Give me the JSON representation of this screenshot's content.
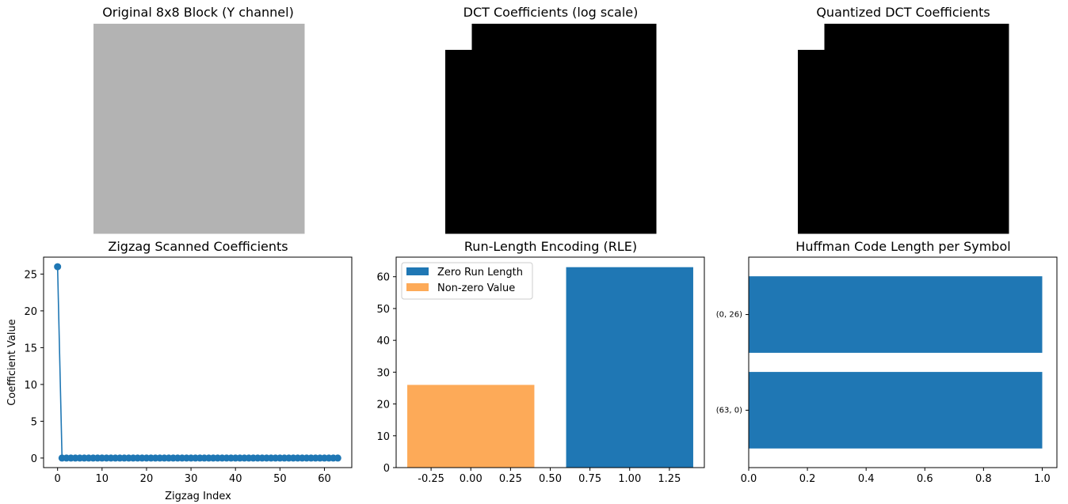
{
  "figure": {
    "panels": {
      "original": {
        "title": "Original 8x8 Block (Y channel)"
      },
      "dct": {
        "title": "DCT Coefficients (log scale)"
      },
      "quantized": {
        "title": "Quantized DCT Coefficients"
      },
      "zigzag": {
        "title": "Zigzag Scanned Coefficients",
        "xlabel": "Zigzag Index",
        "ylabel": "Coefficient Value"
      },
      "rle": {
        "title": "Run-Length Encoding (RLE)"
      },
      "huffman": {
        "title": "Huffman Code Length per Symbol"
      }
    }
  },
  "colors": {
    "blue": "#1f77b4",
    "orange": "#fdaa58",
    "gray": "#b3b3b3",
    "black": "#000000"
  },
  "chart_data": [
    {
      "type": "heatmap",
      "title": "Original 8x8 Block (Y channel)",
      "colormap": "gray",
      "grid": false,
      "note_values": "uniform block",
      "values": [
        [
          0.7,
          0.7,
          0.7,
          0.7,
          0.7,
          0.7,
          0.7,
          0.7
        ],
        [
          0.7,
          0.7,
          0.7,
          0.7,
          0.7,
          0.7,
          0.7,
          0.7
        ],
        [
          0.7,
          0.7,
          0.7,
          0.7,
          0.7,
          0.7,
          0.7,
          0.7
        ],
        [
          0.7,
          0.7,
          0.7,
          0.7,
          0.7,
          0.7,
          0.7,
          0.7
        ],
        [
          0.7,
          0.7,
          0.7,
          0.7,
          0.7,
          0.7,
          0.7,
          0.7
        ],
        [
          0.7,
          0.7,
          0.7,
          0.7,
          0.7,
          0.7,
          0.7,
          0.7
        ],
        [
          0.7,
          0.7,
          0.7,
          0.7,
          0.7,
          0.7,
          0.7,
          0.7
        ],
        [
          0.7,
          0.7,
          0.7,
          0.7,
          0.7,
          0.7,
          0.7,
          0.7
        ]
      ]
    },
    {
      "type": "heatmap",
      "title": "DCT Coefficients (log scale)",
      "colormap": "gray",
      "grid": false,
      "values": [
        [
          1,
          0,
          0,
          0,
          0,
          0,
          0,
          0
        ],
        [
          0,
          0,
          0,
          0,
          0,
          0,
          0,
          0
        ],
        [
          0,
          0,
          0,
          0,
          0,
          0,
          0,
          0
        ],
        [
          0,
          0,
          0,
          0,
          0,
          0,
          0,
          0
        ],
        [
          0,
          0,
          0,
          0,
          0,
          0,
          0,
          0
        ],
        [
          0,
          0,
          0,
          0,
          0,
          0,
          0,
          0
        ],
        [
          0,
          0,
          0,
          0,
          0,
          0,
          0,
          0
        ],
        [
          0,
          0,
          0,
          0,
          0,
          0,
          0,
          0
        ]
      ]
    },
    {
      "type": "heatmap",
      "title": "Quantized DCT Coefficients",
      "colormap": "gray",
      "grid": false,
      "values": [
        [
          1,
          0,
          0,
          0,
          0,
          0,
          0,
          0
        ],
        [
          0,
          0,
          0,
          0,
          0,
          0,
          0,
          0
        ],
        [
          0,
          0,
          0,
          0,
          0,
          0,
          0,
          0
        ],
        [
          0,
          0,
          0,
          0,
          0,
          0,
          0,
          0
        ],
        [
          0,
          0,
          0,
          0,
          0,
          0,
          0,
          0
        ],
        [
          0,
          0,
          0,
          0,
          0,
          0,
          0,
          0
        ],
        [
          0,
          0,
          0,
          0,
          0,
          0,
          0,
          0
        ],
        [
          0,
          0,
          0,
          0,
          0,
          0,
          0,
          0
        ]
      ]
    },
    {
      "type": "line",
      "title": "Zigzag Scanned Coefficients",
      "xlabel": "Zigzag Index",
      "ylabel": "Coefficient Value",
      "marker": "o",
      "x_start": 0,
      "x_end": 63,
      "y_first": 26,
      "y_rest": 0,
      "xlim": [
        -3.15,
        66.15
      ],
      "ylim": [
        -1.3,
        27.3
      ],
      "xticks": [
        0,
        10,
        20,
        30,
        40,
        50,
        60
      ],
      "yticks": [
        0,
        5,
        10,
        15,
        20,
        25
      ],
      "grid": false
    },
    {
      "type": "bar",
      "title": "Run-Length Encoding (RLE)",
      "series": [
        {
          "name": "Zero Run Length",
          "x": [
            1
          ],
          "values": [
            63
          ],
          "color": "#1f77b4"
        },
        {
          "name": "Non-zero Value",
          "x": [
            0
          ],
          "values": [
            26
          ],
          "color": "#fdaa58",
          "alpha": 0.7
        }
      ],
      "bar_width": 0.8,
      "xlim": [
        -0.47,
        1.47
      ],
      "ylim": [
        0,
        66.15
      ],
      "xticks": [
        "-0.25",
        "0.00",
        "0.25",
        "0.50",
        "0.75",
        "1.00",
        "1.25"
      ],
      "yticks": [
        0,
        10,
        20,
        30,
        40,
        50,
        60
      ],
      "legend": "upper-left",
      "grid": false
    },
    {
      "type": "bar",
      "orientation": "horizontal",
      "title": "Huffman Code Length per Symbol",
      "categories": [
        "(0, 26)",
        "(63, 0)"
      ],
      "values": [
        1,
        1
      ],
      "color": "#1f77b4",
      "xlim": [
        0,
        1.05
      ],
      "xticks": [
        "0.0",
        "0.2",
        "0.4",
        "0.6",
        "0.8",
        "1.0"
      ],
      "grid": false
    }
  ]
}
